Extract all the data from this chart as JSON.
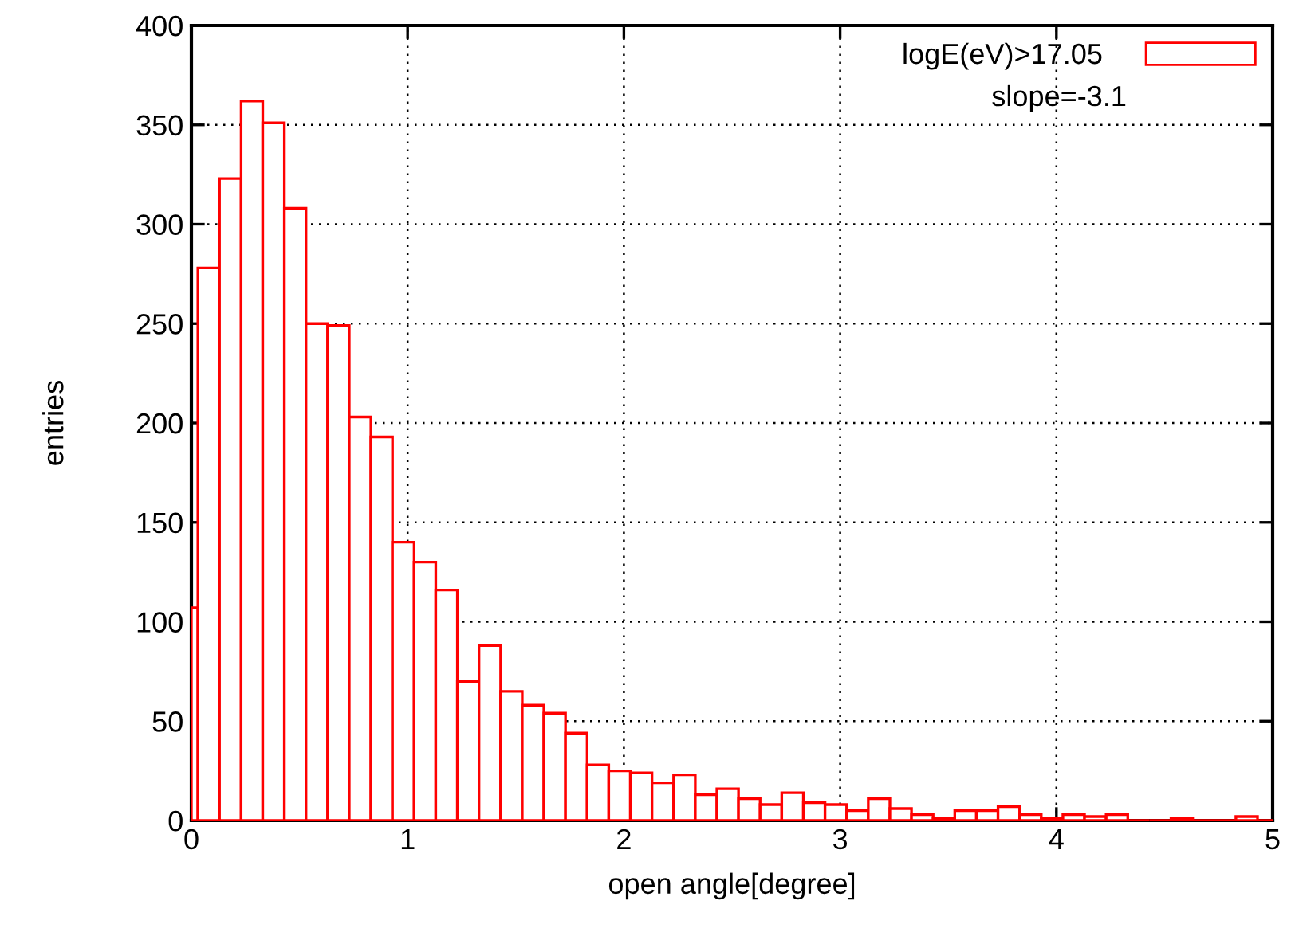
{
  "chart_data": {
    "type": "histogram",
    "xlabel": "open angle[degree]",
    "ylabel": "entries",
    "bins": [
      0,
      0.03,
      0.13,
      0.23,
      0.33,
      0.43,
      0.53,
      0.63,
      0.73,
      0.83,
      0.93,
      1.03,
      1.13,
      1.23,
      1.33,
      1.43,
      1.53,
      1.63,
      1.73,
      1.83,
      1.93,
      2.03,
      2.13,
      2.23,
      2.33,
      2.43,
      2.53,
      2.63,
      2.73,
      2.83,
      2.93,
      3.03,
      3.13,
      3.23,
      3.33,
      3.43,
      3.53,
      3.63,
      3.73,
      3.83,
      3.93,
      4.03,
      4.13,
      4.23,
      4.33,
      4.43,
      4.53,
      4.63,
      4.73,
      4.83,
      4.93,
      5.0
    ],
    "series": [
      {
        "name": "logE(eV)>17.05",
        "color": "#ff0000",
        "values": [
          107,
          278,
          323,
          362,
          351,
          308,
          250,
          249,
          203,
          193,
          140,
          130,
          116,
          70,
          88,
          65,
          58,
          54,
          44,
          28,
          25,
          24,
          19,
          23,
          13,
          16,
          11,
          8,
          14,
          9,
          8,
          5,
          11,
          6,
          3,
          1,
          5,
          5,
          7,
          3,
          1,
          3,
          2,
          3,
          0,
          0,
          1,
          0,
          0,
          2,
          0
        ]
      }
    ],
    "annotations": [
      "slope=-3.1"
    ],
    "xlim": [
      0,
      5
    ],
    "xticks": [
      0,
      1,
      2,
      3,
      4,
      5
    ],
    "ylim": [
      0,
      400
    ],
    "yticks": [
      0,
      50,
      100,
      150,
      200,
      250,
      300,
      350,
      400
    ],
    "grid": true,
    "legend": "top right"
  }
}
